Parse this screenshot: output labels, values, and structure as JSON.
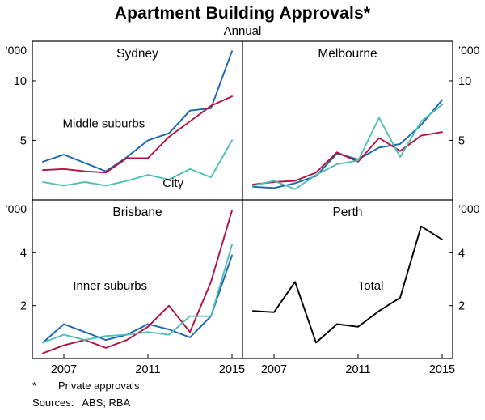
{
  "header": {
    "title": "Apartment Building Approvals*",
    "subtitle": "Annual"
  },
  "footnotes": {
    "asterisk": "*",
    "note": "Private approvals",
    "sources_label": "Sources:",
    "sources": "ABS; RBA"
  },
  "chart_data": {
    "type": "line",
    "title": "Apartment Building Approvals*",
    "subtitle": "Annual",
    "unit_label": "’000",
    "grid": false,
    "x": [
      2006,
      2007,
      2008,
      2009,
      2010,
      2011,
      2012,
      2013,
      2014,
      2015
    ],
    "x_range": [
      2005.5,
      2015.5
    ],
    "x_ticks": [
      2007,
      2011,
      2015
    ],
    "rows": [
      {
        "ylim": [
          0,
          13.33
        ],
        "yticks": [
          5,
          10
        ]
      },
      {
        "ylim": [
          0,
          6
        ],
        "yticks": [
          2,
          4
        ]
      }
    ],
    "colors": {
      "middle_suburbs": "#1b66b1",
      "inner_suburbs": "#b2123f",
      "city": "#4ec0b5",
      "total": "#000000"
    },
    "panels": [
      {
        "title": "Sydney",
        "row": 0,
        "col": 0,
        "series": [
          {
            "name": "Middle suburbs",
            "color": "#1b66b1",
            "values": [
              3.2,
              3.8,
              3.1,
              2.4,
              3.6,
              5.0,
              5.6,
              7.5,
              7.7,
              12.5
            ]
          },
          {
            "name": "Inner suburbs",
            "color": "#b2123f",
            "values": [
              2.5,
              2.6,
              2.4,
              2.3,
              3.5,
              3.5,
              5.3,
              6.6,
              7.9,
              8.7
            ]
          },
          {
            "name": "City",
            "color": "#4ec0b5",
            "values": [
              1.5,
              1.2,
              1.5,
              1.2,
              1.6,
              2.1,
              1.7,
              2.6,
              1.9,
              5.0
            ]
          }
        ],
        "annotations": [
          {
            "text": "Middle suburbs",
            "color": "#1b66b1",
            "x": 2008.9,
            "y": 6.1
          },
          {
            "text": "City",
            "color": "#4ec0b5",
            "x": 2012.2,
            "y": 1.1
          }
        ]
      },
      {
        "title": "Melbourne",
        "row": 0,
        "col": 1,
        "series": [
          {
            "name": "Middle suburbs",
            "color": "#1b66b1",
            "values": [
              1.1,
              1.0,
              1.4,
              2.0,
              3.9,
              3.4,
              4.4,
              4.7,
              6.3,
              8.4
            ]
          },
          {
            "name": "Inner suburbs",
            "color": "#b2123f",
            "values": [
              1.3,
              1.5,
              1.6,
              2.3,
              4.0,
              3.2,
              5.2,
              4.1,
              5.4,
              5.7
            ]
          },
          {
            "name": "City",
            "color": "#4ec0b5",
            "values": [
              1.2,
              1.6,
              0.9,
              2.1,
              3.0,
              3.3,
              6.9,
              3.6,
              6.6,
              8.0
            ]
          }
        ],
        "annotations": []
      },
      {
        "title": "Brisbane",
        "row": 1,
        "col": 0,
        "series": [
          {
            "name": "Middle suburbs",
            "color": "#1b66b1",
            "values": [
              0.6,
              1.3,
              1.0,
              0.7,
              0.9,
              1.3,
              1.1,
              0.8,
              1.6,
              3.9
            ]
          },
          {
            "name": "Inner suburbs",
            "color": "#b2123f",
            "values": [
              0.2,
              0.5,
              0.7,
              0.4,
              0.7,
              1.2,
              2.0,
              1.0,
              2.9,
              5.6
            ]
          },
          {
            "name": "City",
            "color": "#4ec0b5",
            "values": [
              0.6,
              0.9,
              0.7,
              0.85,
              0.9,
              1.0,
              0.9,
              1.6,
              1.6,
              4.3
            ]
          }
        ],
        "annotations": [
          {
            "text": "Inner suburbs",
            "color": "#b2123f",
            "x": 2009.2,
            "y": 2.6
          }
        ]
      },
      {
        "title": "Perth",
        "row": 1,
        "col": 1,
        "series": [
          {
            "name": "Total",
            "color": "#000000",
            "values": [
              1.8,
              1.75,
              2.9,
              0.6,
              1.3,
              1.2,
              1.8,
              2.3,
              5.0,
              4.5
            ]
          }
        ],
        "annotations": [
          {
            "text": "Total",
            "color": "#000000",
            "x": 2011.6,
            "y": 2.6
          }
        ]
      }
    ]
  }
}
